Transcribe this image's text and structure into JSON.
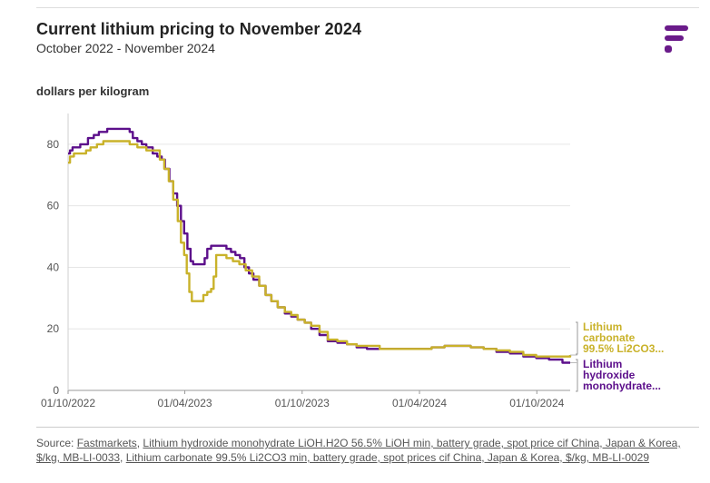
{
  "header": {
    "title": "Current lithium pricing to November 2024",
    "subtitle": "October 2022 - November 2024",
    "logo_icon": "fastmarkets-logo-icon",
    "brand_color": "#6a1b8a"
  },
  "footer": {
    "source_prefix": "Source: ",
    "links": [
      {
        "text": "Fastmarkets"
      },
      {
        "text": "Lithium hydroxide monohydrate LiOH.H2O 56.5% LiOH min, battery grade, spot price cif China, Japan & Korea, $/kg, MB-LI-0033"
      },
      {
        "text": "Lithium carbonate 99.5% Li2CO3 min, battery grade, spot prices cif China, Japan & Korea, $/kg, MB-LI-0029"
      }
    ]
  },
  "chart_data": {
    "type": "line",
    "title": "Current lithium pricing to November 2024",
    "subtitle": "October 2022 - November 2024",
    "ylabel": "dollars per kilogram",
    "xlabel": "",
    "ylim": [
      0,
      90
    ],
    "xlim": [
      "2022-10-01",
      "2024-11-22"
    ],
    "yticks": [
      0,
      20,
      40,
      60,
      80
    ],
    "xticks": [
      {
        "date": "2022-10-01",
        "label": "01/10/2022"
      },
      {
        "date": "2023-04-01",
        "label": "01/04/2023"
      },
      {
        "date": "2023-10-01",
        "label": "01/10/2023"
      },
      {
        "date": "2024-04-01",
        "label": "01/04/2024"
      },
      {
        "date": "2024-10-01",
        "label": "01/10/2024"
      }
    ],
    "grid": "horizontal",
    "series": [
      {
        "name": "Lithium hydroxide monohydrate...",
        "end_label_lines": [
          "Lithium",
          "hydroxide",
          "monohydrate..."
        ],
        "color": "#5c0f8b",
        "points": [
          [
            "2022-10-01",
            77
          ],
          [
            "2022-10-04",
            78
          ],
          [
            "2022-10-08",
            79
          ],
          [
            "2022-10-15",
            79
          ],
          [
            "2022-10-20",
            80
          ],
          [
            "2022-10-29",
            80
          ],
          [
            "2022-11-01",
            82
          ],
          [
            "2022-11-10",
            83
          ],
          [
            "2022-11-18",
            84
          ],
          [
            "2022-11-25",
            84
          ],
          [
            "2022-12-01",
            85
          ],
          [
            "2022-12-10",
            85
          ],
          [
            "2022-12-20",
            85
          ],
          [
            "2022-12-30",
            85
          ],
          [
            "2023-01-05",
            84
          ],
          [
            "2023-01-10",
            82
          ],
          [
            "2023-01-17",
            81
          ],
          [
            "2023-01-24",
            80
          ],
          [
            "2023-01-31",
            79
          ],
          [
            "2023-02-07",
            79
          ],
          [
            "2023-02-10",
            77
          ],
          [
            "2023-02-17",
            76
          ],
          [
            "2023-02-24",
            75
          ],
          [
            "2023-03-01",
            72
          ],
          [
            "2023-03-08",
            68
          ],
          [
            "2023-03-14",
            64
          ],
          [
            "2023-03-20",
            60
          ],
          [
            "2023-03-26",
            55
          ],
          [
            "2023-03-31",
            51
          ],
          [
            "2023-04-05",
            46
          ],
          [
            "2023-04-10",
            42
          ],
          [
            "2023-04-14",
            41
          ],
          [
            "2023-04-26",
            41
          ],
          [
            "2023-05-02",
            43
          ],
          [
            "2023-05-06",
            46
          ],
          [
            "2023-05-12",
            47
          ],
          [
            "2023-05-18",
            47
          ],
          [
            "2023-05-24",
            47
          ],
          [
            "2023-05-30",
            47
          ],
          [
            "2023-06-05",
            46
          ],
          [
            "2023-06-12",
            45
          ],
          [
            "2023-06-19",
            44
          ],
          [
            "2023-06-26",
            43
          ],
          [
            "2023-07-03",
            40
          ],
          [
            "2023-07-10",
            38
          ],
          [
            "2023-07-17",
            36
          ],
          [
            "2023-07-26",
            34
          ],
          [
            "2023-08-05",
            31
          ],
          [
            "2023-08-14",
            29
          ],
          [
            "2023-08-24",
            27
          ],
          [
            "2023-09-04",
            25
          ],
          [
            "2023-09-14",
            24
          ],
          [
            "2023-09-24",
            23
          ],
          [
            "2023-10-05",
            22
          ],
          [
            "2023-10-15",
            20
          ],
          [
            "2023-10-28",
            18
          ],
          [
            "2023-11-10",
            16
          ],
          [
            "2023-11-25",
            15.5
          ],
          [
            "2023-12-10",
            15
          ],
          [
            "2023-12-25",
            14
          ],
          [
            "2024-01-10",
            13.5
          ],
          [
            "2024-01-30",
            13.5
          ],
          [
            "2024-02-20",
            13.5
          ],
          [
            "2024-03-10",
            13.5
          ],
          [
            "2024-03-30",
            13.5
          ],
          [
            "2024-04-20",
            14
          ],
          [
            "2024-05-10",
            14.5
          ],
          [
            "2024-05-30",
            14.5
          ],
          [
            "2024-06-20",
            14
          ],
          [
            "2024-07-10",
            13.5
          ],
          [
            "2024-07-30",
            12.5
          ],
          [
            "2024-08-20",
            12
          ],
          [
            "2024-09-10",
            11
          ],
          [
            "2024-09-30",
            10.5
          ],
          [
            "2024-10-20",
            10
          ],
          [
            "2024-11-10",
            9
          ],
          [
            "2024-11-22",
            9
          ]
        ]
      },
      {
        "name": "Lithium carbonate 99.5% Li2CO3...",
        "end_label_lines": [
          "Lithium",
          "carbonate",
          "99.5% Li2CO3..."
        ],
        "color": "#c9b22a",
        "points": [
          [
            "2022-10-01",
            74
          ],
          [
            "2022-10-04",
            76
          ],
          [
            "2022-10-10",
            77
          ],
          [
            "2022-10-20",
            77
          ],
          [
            "2022-10-29",
            78
          ],
          [
            "2022-11-05",
            79
          ],
          [
            "2022-11-15",
            80
          ],
          [
            "2022-11-25",
            81
          ],
          [
            "2022-12-10",
            81
          ],
          [
            "2022-12-28",
            81
          ],
          [
            "2023-01-05",
            80
          ],
          [
            "2023-01-17",
            79
          ],
          [
            "2023-01-31",
            78
          ],
          [
            "2023-02-14",
            78
          ],
          [
            "2023-02-21",
            75
          ],
          [
            "2023-02-28",
            72
          ],
          [
            "2023-03-07",
            68
          ],
          [
            "2023-03-14",
            62
          ],
          [
            "2023-03-21",
            55
          ],
          [
            "2023-03-26",
            48
          ],
          [
            "2023-03-31",
            44
          ],
          [
            "2023-04-04",
            38
          ],
          [
            "2023-04-08",
            32
          ],
          [
            "2023-04-12",
            29
          ],
          [
            "2023-04-26",
            29
          ],
          [
            "2023-04-30",
            31
          ],
          [
            "2023-05-06",
            32
          ],
          [
            "2023-05-12",
            33
          ],
          [
            "2023-05-16",
            37
          ],
          [
            "2023-05-20",
            44
          ],
          [
            "2023-05-27",
            44
          ],
          [
            "2023-06-05",
            43
          ],
          [
            "2023-06-15",
            42
          ],
          [
            "2023-06-25",
            41
          ],
          [
            "2023-07-05",
            39
          ],
          [
            "2023-07-15",
            37
          ],
          [
            "2023-07-26",
            34
          ],
          [
            "2023-08-05",
            31
          ],
          [
            "2023-08-14",
            29
          ],
          [
            "2023-08-24",
            27
          ],
          [
            "2023-09-04",
            25.5
          ],
          [
            "2023-09-14",
            24.5
          ],
          [
            "2023-09-24",
            23
          ],
          [
            "2023-10-05",
            22
          ],
          [
            "2023-10-15",
            21
          ],
          [
            "2023-10-28",
            19
          ],
          [
            "2023-11-10",
            16.5
          ],
          [
            "2023-11-25",
            16
          ],
          [
            "2023-12-10",
            15
          ],
          [
            "2023-12-25",
            14.5
          ],
          [
            "2024-01-10",
            14.5
          ],
          [
            "2024-01-30",
            13.5
          ],
          [
            "2024-02-20",
            13.5
          ],
          [
            "2024-03-10",
            13.5
          ],
          [
            "2024-03-30",
            13.5
          ],
          [
            "2024-04-20",
            14
          ],
          [
            "2024-05-10",
            14.5
          ],
          [
            "2024-05-30",
            14.5
          ],
          [
            "2024-06-20",
            14
          ],
          [
            "2024-07-10",
            13.5
          ],
          [
            "2024-07-30",
            13
          ],
          [
            "2024-08-20",
            12.5
          ],
          [
            "2024-09-10",
            11.5
          ],
          [
            "2024-09-30",
            11
          ],
          [
            "2024-10-20",
            11
          ],
          [
            "2024-11-10",
            11
          ],
          [
            "2024-11-22",
            11.5
          ]
        ]
      }
    ]
  }
}
